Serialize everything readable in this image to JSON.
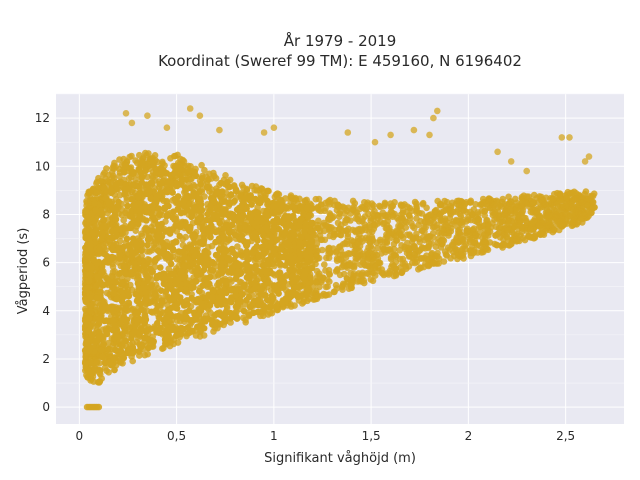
{
  "chart_data": {
    "type": "scatter",
    "title_line1": "År 1979 - 2019",
    "title_line2": "Koordinat (Sweref 99 TM): E 459160, N 6196402",
    "xlabel": "Signifikant våghöjd (m)",
    "ylabel": "Vågperiod (s)",
    "xlim": [
      -0.12,
      2.8
    ],
    "ylim": [
      -0.7,
      13.0
    ],
    "x_ticks": [
      0,
      0.5,
      1,
      1.5,
      2,
      2.5
    ],
    "x_tick_labels": [
      "0",
      "0,5",
      "1",
      "1,5",
      "2",
      "2,5"
    ],
    "y_ticks": [
      0,
      2,
      4,
      6,
      8,
      10,
      12
    ],
    "y_tick_labels": [
      "0",
      "2",
      "4",
      "6",
      "8",
      "10",
      "12"
    ],
    "grid": true,
    "marker_color": "#d4a520",
    "plot_background": "#e9e9f2",
    "density_envelope": {
      "x": [
        0.03,
        0.05,
        0.1,
        0.2,
        0.3,
        0.5,
        0.7,
        1.0,
        1.3,
        1.6,
        2.0,
        2.3,
        2.6,
        2.65
      ],
      "y_lower": [
        1.4,
        1.1,
        1.0,
        1.6,
        2.0,
        2.6,
        3.1,
        3.9,
        4.7,
        5.4,
        6.2,
        6.9,
        7.7,
        8.2
      ],
      "y_upper_dense": [
        8.5,
        9.0,
        9.7,
        10.3,
        10.6,
        10.5,
        9.8,
        8.9,
        8.6,
        8.5,
        8.6,
        8.8,
        9.0,
        8.9
      ]
    },
    "zero_period_points": {
      "x": [
        0.04,
        0.05,
        0.06,
        0.07,
        0.08,
        0.09,
        0.1
      ],
      "y": [
        0,
        0,
        0,
        0,
        0,
        0,
        0
      ]
    },
    "outliers": {
      "x": [
        0.24,
        0.27,
        0.35,
        0.45,
        0.57,
        0.62,
        0.72,
        0.95,
        1.0,
        1.38,
        1.52,
        1.6,
        1.72,
        1.8,
        1.82,
        1.84,
        2.15,
        2.22,
        2.3,
        2.48,
        2.52,
        2.6,
        2.62
      ],
      "y": [
        12.2,
        11.8,
        12.1,
        11.6,
        12.4,
        12.1,
        11.5,
        11.4,
        11.6,
        11.4,
        11.0,
        11.3,
        11.5,
        11.3,
        12.0,
        12.3,
        10.6,
        10.2,
        9.8,
        11.2,
        11.2,
        10.2,
        10.4
      ]
    }
  }
}
